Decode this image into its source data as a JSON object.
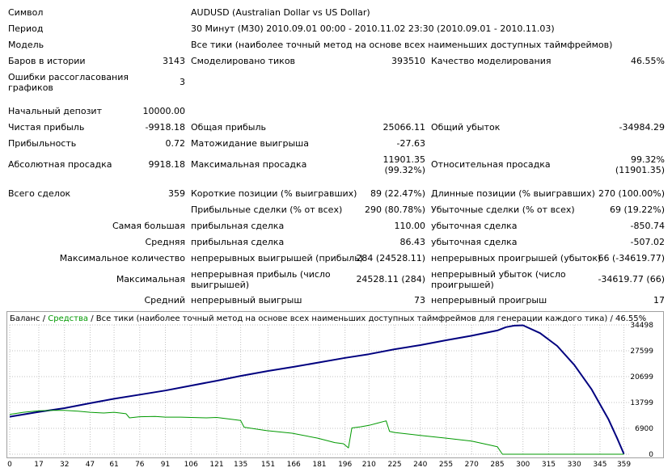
{
  "report": {
    "symbol_label": "Символ",
    "symbol_value": "AUDUSD (Australian Dollar vs US Dollar)",
    "period_label": "Период",
    "period_value": "30 Минут (M30) 2010.09.01 00:00 - 2010.11.02 23:30 (2010.09.01 - 2010.11.03)",
    "model_label": "Модель",
    "model_value": "Все тики (наиболее точный метод на основе всех наименьших доступных таймфреймов)",
    "bars_label": "Баров в истории",
    "bars_value": "3143",
    "ticks_label": "Смоделировано тиков",
    "ticks_value": "393510",
    "quality_label": "Качество моделирования",
    "quality_value": "46.55%",
    "mismatch_label": "Ошибки рассогласования графиков",
    "mismatch_value": "3",
    "deposit_label": "Начальный депозит",
    "deposit_value": "10000.00",
    "net_profit_label": "Чистая прибыль",
    "net_profit_value": "-9918.18",
    "gross_profit_label": "Общая прибыль",
    "gross_profit_value": "25066.11",
    "gross_loss_label": "Общий убыток",
    "gross_loss_value": "-34984.29",
    "profit_factor_label": "Прибыльность",
    "profit_factor_value": "0.72",
    "expected_payoff_label": "Матожидание выигрыша",
    "expected_payoff_value": "-27.63",
    "abs_drawdown_label": "Абсолютная просадка",
    "abs_drawdown_value": "9918.18",
    "max_drawdown_label": "Максимальная просадка",
    "max_drawdown_value_1": "11901.35",
    "max_drawdown_value_2": "(99.32%)",
    "rel_drawdown_label": "Относительная просадка",
    "rel_drawdown_value_1": "99.32%",
    "rel_drawdown_value_2": "(11901.35)",
    "total_trades_label": "Всего сделок",
    "total_trades_value": "359",
    "short_label": "Короткие позиции (% выигравших)",
    "short_value": "89 (22.47%)",
    "long_label": "Длинные позиции (% выигравших)",
    "long_value": "270 (100.00%)",
    "profit_trades_label": "Прибыльные сделки (% от всех)",
    "profit_trades_value": "290 (80.78%)",
    "loss_trades_label": "Убыточные сделки (% от всех)",
    "loss_trades_value": "69 (19.22%)",
    "largest_label": "Самая большая",
    "largest_profit_label": "прибыльная сделка",
    "largest_profit_value": "110.00",
    "largest_loss_label": "убыточная сделка",
    "largest_loss_value": "-850.74",
    "average_label": "Средняя",
    "average_profit_label": "прибыльная сделка",
    "average_profit_value": "86.43",
    "average_loss_label": "убыточная сделка",
    "average_loss_value": "-507.02",
    "max_count_label": "Максимальное количество",
    "max_cons_wins_label": "непрерывных выигрышей (прибыль)",
    "max_cons_wins_value": "284 (24528.11)",
    "max_cons_losses_label": "непрерывных проигрышей (убыток)",
    "max_cons_losses_value": "66 (-34619.77)",
    "maximal_label": "Максимальная",
    "maximal_profit_label": "непрерывная прибыль (число выигрышей)",
    "maximal_profit_value": "24528.11 (284)",
    "maximal_loss_label": "непрерывный убыток (число проигрышей)",
    "maximal_loss_value": "-34619.77 (66)",
    "avg_cons_label": "Средний",
    "avg_cons_wins_label": "непрерывный выигрыш",
    "avg_cons_wins_value": "73",
    "avg_cons_losses_label": "непрерывный проигрыш",
    "avg_cons_losses_value": "17"
  },
  "chart_header": {
    "balance": "Баланс",
    "sep1": " / ",
    "equity": "Средства",
    "sep2": " / ",
    "rest": "Все тики (наиболее точный метод на основе всех наименьших доступных таймфреймов для генерации каждого тика) / 46.55%"
  },
  "colors": {
    "balance": "#00007f",
    "equity": "#009900",
    "grid": "#c0c0c0"
  },
  "chart_data": {
    "type": "line",
    "title": "Баланс / Средства / Все тики (наиболее точный метод на основе всех наименьших доступных таймфреймов для генерации каждого тика) / 46.55%",
    "xlabel": "",
    "ylabel": "",
    "x_ticks": [
      "0",
      "17",
      "32",
      "47",
      "61",
      "76",
      "91",
      "106",
      "121",
      "135",
      "151",
      "166",
      "181",
      "196",
      "210",
      "225",
      "240",
      "255",
      "270",
      "285",
      "300",
      "315",
      "330",
      "345",
      "359"
    ],
    "y_ticks": [
      "34498",
      "27599",
      "20699",
      "13799",
      "6900",
      "0"
    ],
    "xlim": [
      0,
      363
    ],
    "ylim": [
      0,
      34498
    ],
    "grid": true,
    "series": [
      {
        "name": "Баланс",
        "x": [
          0,
          17,
          32,
          47,
          61,
          76,
          91,
          106,
          121,
          135,
          151,
          166,
          181,
          196,
          210,
          225,
          240,
          255,
          270,
          285,
          290,
          295,
          300,
          310,
          320,
          330,
          340,
          350,
          355,
          359
        ],
        "y": [
          10000,
          11300,
          12300,
          13600,
          14800,
          15900,
          17000,
          18300,
          19600,
          20900,
          22200,
          23300,
          24500,
          25700,
          26700,
          28000,
          29100,
          30400,
          31600,
          33000,
          33900,
          34300,
          34400,
          32300,
          28900,
          23800,
          17400,
          9300,
          4300,
          82
        ]
      },
      {
        "name": "Средства",
        "x": [
          0,
          8,
          17,
          25,
          32,
          40,
          47,
          55,
          61,
          68,
          70,
          76,
          85,
          91,
          100,
          106,
          115,
          121,
          130,
          135,
          137,
          150,
          165,
          180,
          190,
          195,
          198,
          200,
          205,
          210,
          215,
          220,
          222,
          225,
          240,
          255,
          270,
          280,
          285,
          288,
          300,
          320,
          340,
          359
        ],
        "y": [
          10600,
          11200,
          11600,
          11700,
          11700,
          11500,
          11200,
          11000,
          11200,
          10800,
          9700,
          10000,
          10100,
          9900,
          9900,
          9800,
          9700,
          9800,
          9300,
          9000,
          7200,
          6300,
          5600,
          4300,
          3100,
          2800,
          1700,
          7000,
          7300,
          7700,
          8300,
          8900,
          6100,
          5800,
          5000,
          4300,
          3500,
          2500,
          2000,
          0,
          0,
          0,
          0,
          0
        ]
      }
    ]
  }
}
